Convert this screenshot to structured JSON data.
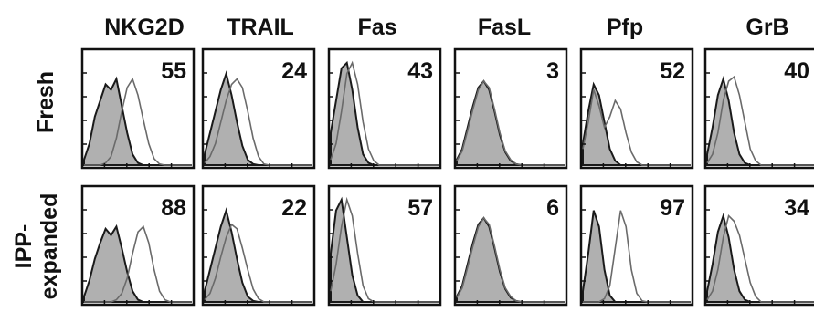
{
  "columns": [
    "NKG2D",
    "TRAIL",
    "Fas",
    "FasL",
    "Pfp",
    "GrB"
  ],
  "rows": [
    {
      "label": "Fresh",
      "label_lines": [
        "Fresh"
      ],
      "values": [
        "55",
        "24",
        "43",
        "3",
        "52",
        "40"
      ]
    },
    {
      "label": "IPP-expanded",
      "label_lines": [
        "IPP-",
        "expanded"
      ],
      "values": [
        "88",
        "22",
        "57",
        "6",
        "97",
        "34"
      ]
    }
  ],
  "colors": {
    "filled": "#b0b0b0",
    "filled_outline": "#1a1a1a",
    "open_outline": "#6a6a6a",
    "frame": "#111111"
  },
  "histograms": [
    [
      {
        "control": [
          0.05,
          0.2,
          0.45,
          0.6,
          0.75,
          0.7,
          0.8,
          0.55,
          0.3,
          0.1,
          0.02,
          0,
          0,
          0,
          0,
          0,
          0,
          0,
          0,
          0,
          0
        ],
        "stain": [
          0,
          0,
          0,
          0,
          0.02,
          0.08,
          0.25,
          0.5,
          0.72,
          0.8,
          0.65,
          0.42,
          0.2,
          0.06,
          0.01,
          0,
          0,
          0,
          0,
          0,
          0
        ]
      },
      {
        "control": [
          0.1,
          0.3,
          0.5,
          0.7,
          0.85,
          0.65,
          0.4,
          0.18,
          0.05,
          0.01,
          0,
          0,
          0,
          0,
          0,
          0,
          0,
          0,
          0,
          0,
          0
        ],
        "stain": [
          0.02,
          0.08,
          0.2,
          0.4,
          0.6,
          0.75,
          0.8,
          0.72,
          0.5,
          0.25,
          0.08,
          0.01,
          0,
          0,
          0,
          0,
          0,
          0,
          0,
          0,
          0
        ]
      },
      {
        "control": [
          0.3,
          0.6,
          0.9,
          0.95,
          0.7,
          0.35,
          0.1,
          0.02,
          0,
          0,
          0,
          0,
          0,
          0,
          0,
          0,
          0,
          0,
          0,
          0,
          0
        ],
        "stain": [
          0.05,
          0.2,
          0.5,
          0.85,
          0.95,
          0.75,
          0.4,
          0.15,
          0.04,
          0,
          0,
          0,
          0,
          0,
          0,
          0,
          0,
          0,
          0,
          0,
          0
        ]
      },
      {
        "control": [
          0.05,
          0.15,
          0.35,
          0.55,
          0.72,
          0.78,
          0.7,
          0.5,
          0.28,
          0.12,
          0.04,
          0.01,
          0,
          0,
          0,
          0,
          0,
          0,
          0,
          0,
          0
        ],
        "stain": [
          0.04,
          0.13,
          0.32,
          0.52,
          0.7,
          0.78,
          0.72,
          0.52,
          0.3,
          0.13,
          0.05,
          0.01,
          0,
          0,
          0,
          0,
          0,
          0,
          0,
          0,
          0
        ]
      },
      {
        "control": [
          0.2,
          0.5,
          0.75,
          0.65,
          0.4,
          0.15,
          0.04,
          0,
          0,
          0,
          0,
          0,
          0,
          0,
          0,
          0,
          0,
          0,
          0,
          0,
          0
        ],
        "stain": [
          0.15,
          0.4,
          0.7,
          0.55,
          0.35,
          0.45,
          0.6,
          0.52,
          0.3,
          0.12,
          0.03,
          0,
          0,
          0,
          0,
          0,
          0,
          0,
          0,
          0,
          0
        ]
      },
      {
        "control": [
          0.1,
          0.35,
          0.65,
          0.8,
          0.6,
          0.3,
          0.1,
          0.02,
          0,
          0,
          0,
          0,
          0,
          0,
          0,
          0,
          0,
          0,
          0,
          0,
          0
        ],
        "stain": [
          0.02,
          0.1,
          0.3,
          0.6,
          0.78,
          0.82,
          0.65,
          0.4,
          0.15,
          0.04,
          0,
          0,
          0,
          0,
          0,
          0,
          0,
          0,
          0,
          0,
          0
        ]
      }
    ],
    [
      {
        "control": [
          0.05,
          0.2,
          0.4,
          0.55,
          0.68,
          0.62,
          0.7,
          0.5,
          0.28,
          0.1,
          0.02,
          0,
          0,
          0,
          0,
          0,
          0,
          0,
          0,
          0,
          0
        ],
        "stain": [
          0,
          0,
          0,
          0,
          0,
          0,
          0.02,
          0.08,
          0.22,
          0.45,
          0.65,
          0.7,
          0.55,
          0.3,
          0.1,
          0.02,
          0,
          0,
          0,
          0,
          0
        ]
      },
      {
        "control": [
          0.1,
          0.3,
          0.5,
          0.7,
          0.85,
          0.65,
          0.4,
          0.18,
          0.05,
          0.01,
          0,
          0,
          0,
          0,
          0,
          0,
          0,
          0,
          0,
          0,
          0
        ],
        "stain": [
          0.02,
          0.08,
          0.22,
          0.42,
          0.6,
          0.72,
          0.68,
          0.5,
          0.3,
          0.12,
          0.03,
          0,
          0,
          0,
          0,
          0,
          0,
          0,
          0,
          0,
          0
        ]
      },
      {
        "control": [
          0.45,
          0.85,
          0.95,
          0.6,
          0.25,
          0.06,
          0,
          0,
          0,
          0,
          0,
          0,
          0,
          0,
          0,
          0,
          0,
          0,
          0,
          0,
          0
        ],
        "stain": [
          0.1,
          0.35,
          0.7,
          0.95,
          0.8,
          0.45,
          0.15,
          0.03,
          0,
          0,
          0,
          0,
          0,
          0,
          0,
          0,
          0,
          0,
          0,
          0,
          0
        ]
      },
      {
        "control": [
          0.05,
          0.15,
          0.35,
          0.55,
          0.72,
          0.78,
          0.7,
          0.5,
          0.28,
          0.12,
          0.04,
          0.01,
          0,
          0,
          0,
          0,
          0,
          0,
          0,
          0,
          0
        ],
        "stain": [
          0.04,
          0.13,
          0.32,
          0.52,
          0.7,
          0.78,
          0.72,
          0.52,
          0.3,
          0.13,
          0.05,
          0.01,
          0,
          0,
          0,
          0,
          0,
          0,
          0,
          0,
          0
        ]
      },
      {
        "control": [
          0.1,
          0.45,
          0.85,
          0.7,
          0.3,
          0.06,
          0,
          0,
          0,
          0,
          0,
          0,
          0,
          0,
          0,
          0,
          0,
          0,
          0,
          0,
          0
        ],
        "stain": [
          0,
          0,
          0,
          0,
          0.03,
          0.15,
          0.5,
          0.85,
          0.7,
          0.3,
          0.08,
          0.01,
          0,
          0,
          0,
          0,
          0,
          0,
          0,
          0,
          0
        ]
      },
      {
        "control": [
          0.1,
          0.35,
          0.65,
          0.8,
          0.6,
          0.3,
          0.1,
          0.02,
          0,
          0,
          0,
          0,
          0,
          0,
          0,
          0,
          0,
          0,
          0,
          0,
          0
        ],
        "stain": [
          0.02,
          0.1,
          0.3,
          0.6,
          0.8,
          0.75,
          0.62,
          0.4,
          0.18,
          0.05,
          0,
          0,
          0,
          0,
          0,
          0,
          0,
          0,
          0,
          0,
          0
        ]
      }
    ]
  ]
}
